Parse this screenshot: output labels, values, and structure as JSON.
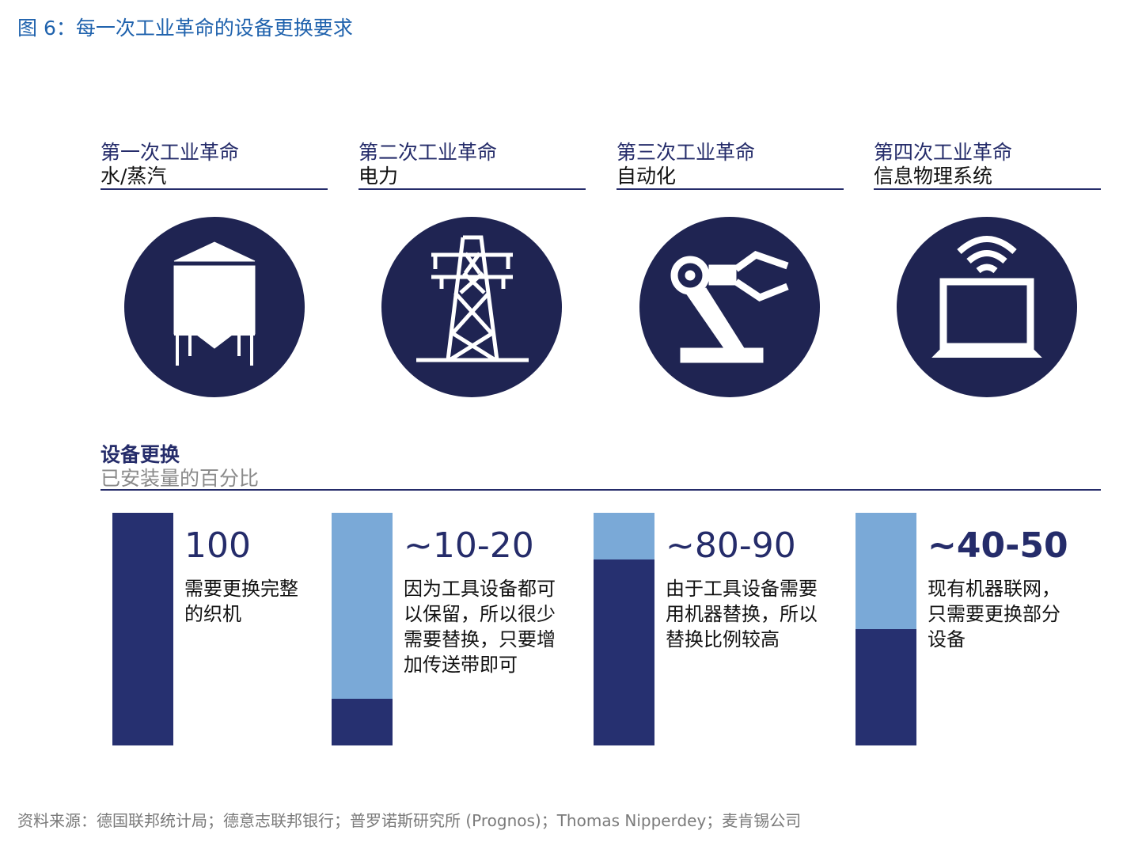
{
  "header": {
    "title": "图 6：每一次工业革命的设备更换要求"
  },
  "eras": [
    {
      "title": "第一次工业革命",
      "subtitle": "水/蒸汽"
    },
    {
      "title": "第二次工业革命",
      "subtitle": "电力"
    },
    {
      "title": "第三次工业革命",
      "subtitle": "自动化"
    },
    {
      "title": "第四次工业革命",
      "subtitle": "信息物理系统"
    }
  ],
  "replacement": {
    "title": "设备更换",
    "subtitle": "已安装量的百分比",
    "items": [
      {
        "label": "100",
        "share": 100,
        "description": [
          "需要更换完整",
          "的织机"
        ]
      },
      {
        "label": "~10-20",
        "share": 20,
        "description": [
          "因为工具设备都可",
          "以保留，所以很少",
          "需要替换，只要增",
          "加传送带即可"
        ]
      },
      {
        "label": "~80-90",
        "share": 80,
        "description": [
          "由于工具设备需要",
          "用机器替换，所以",
          "替换比例较高"
        ]
      },
      {
        "label": "~40-50",
        "share": 50,
        "description": [
          "现有机器联网，",
          "只需要更换部分",
          "设备"
        ]
      }
    ]
  },
  "source": "资料来源：德国联邦统计局；德意志联邦银行；普罗诺斯研究所 (Prognos)；Thomas Nipperdey；麦肯锡公司"
}
